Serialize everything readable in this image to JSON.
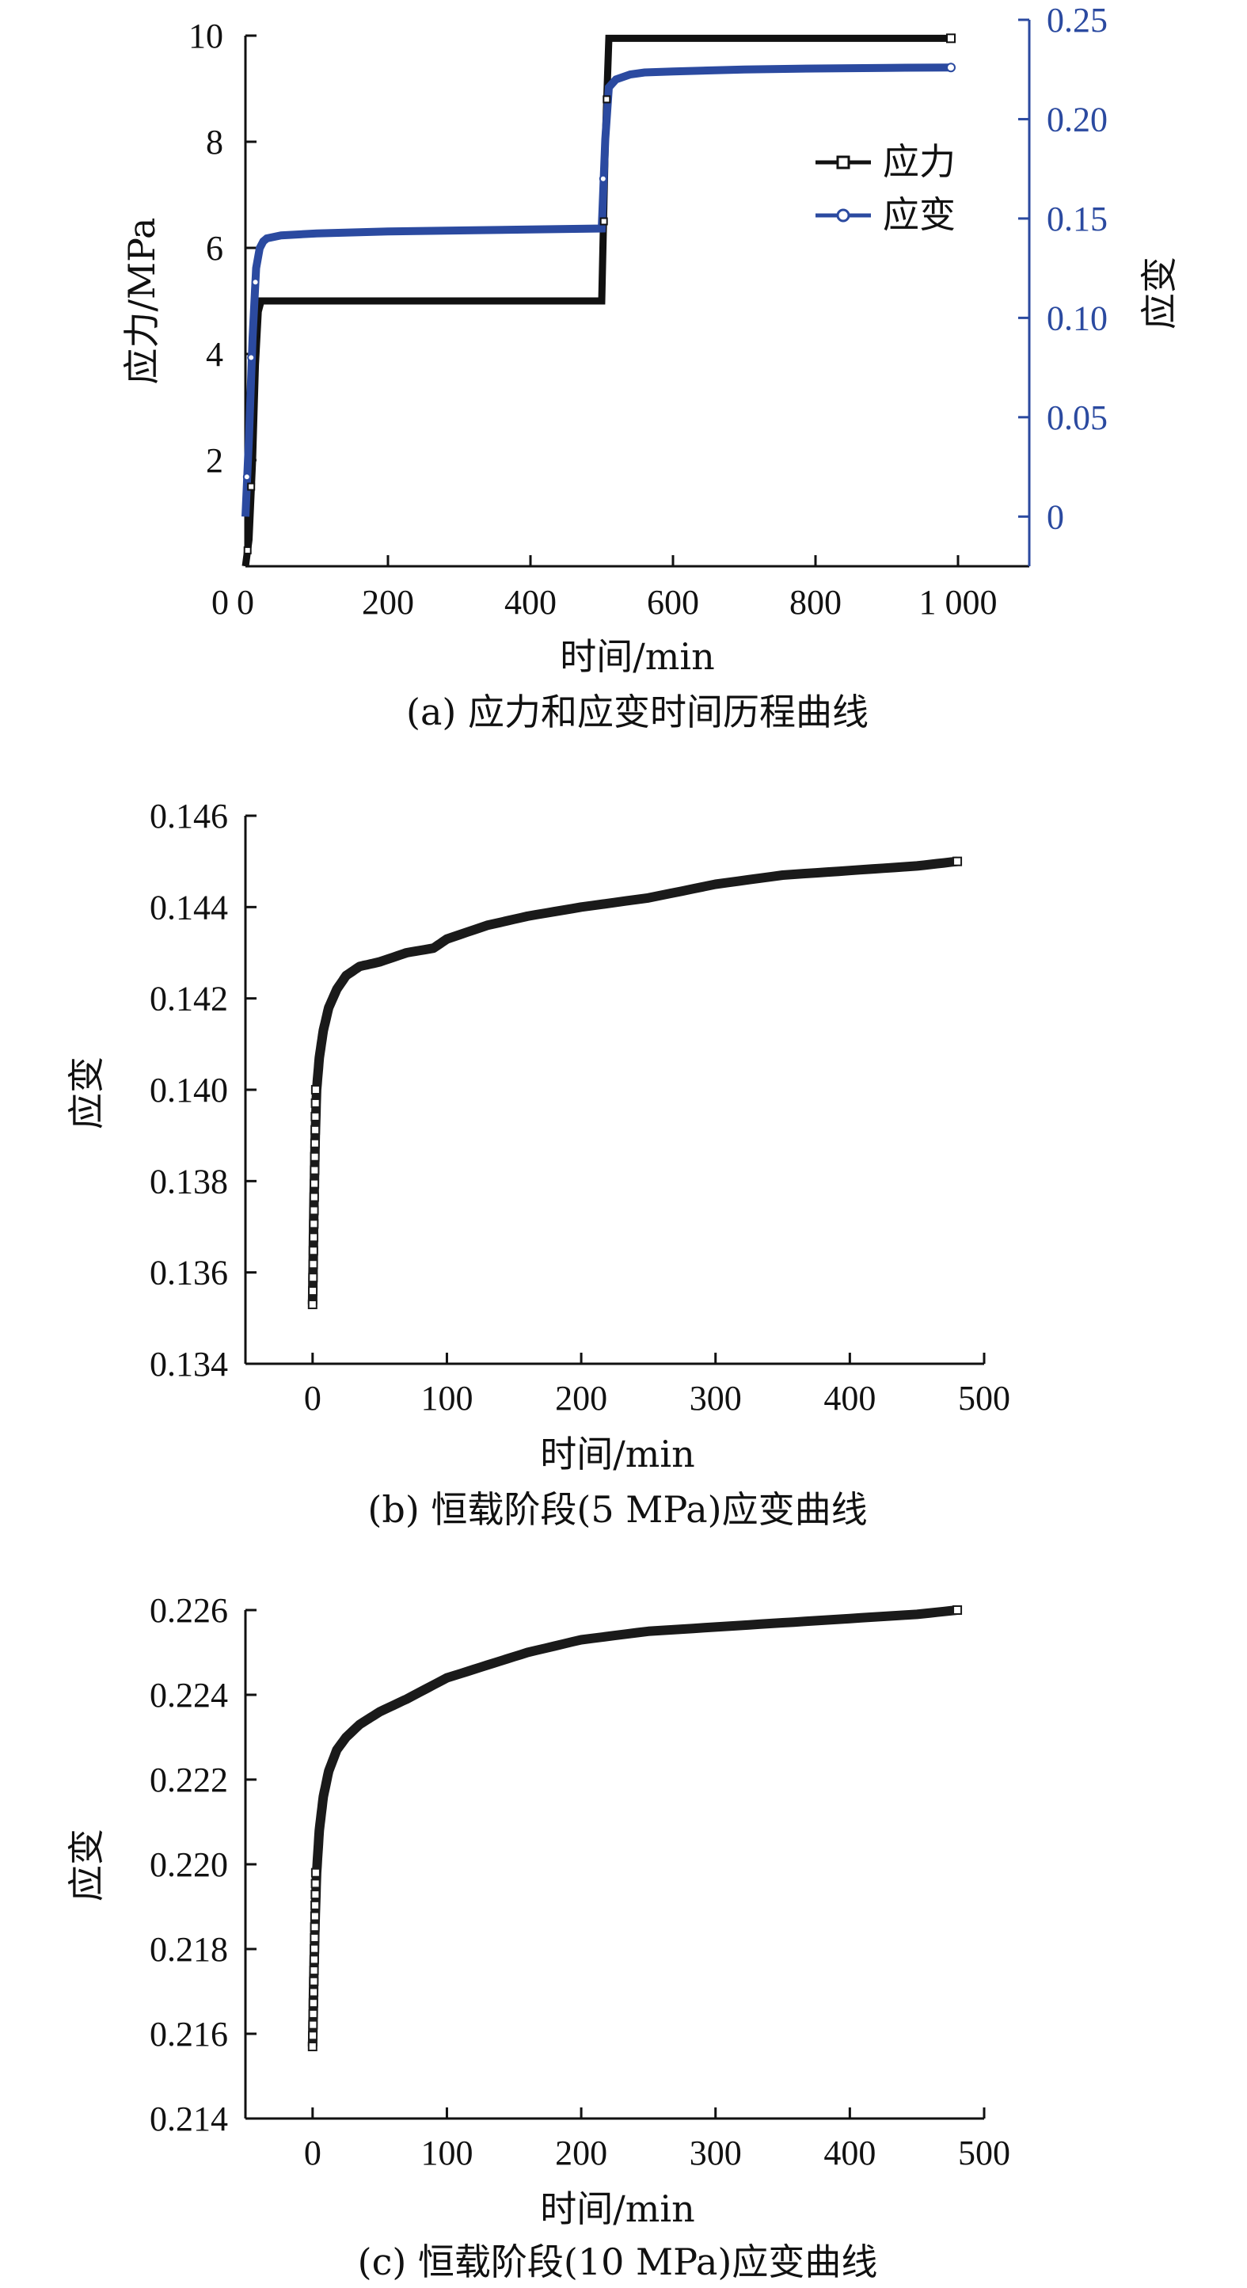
{
  "chart_data": [
    {
      "id": "a",
      "type": "line",
      "caption": "(a) 应力和应变时间历程曲线",
      "xlabel": "时间/min",
      "ylabel": "应力/MPa",
      "y2label": "应变",
      "xlim": [
        0,
        1100
      ],
      "ylim": [
        0,
        10
      ],
      "y2lim": [
        -0.025,
        0.25
      ],
      "x_ticks": [
        0,
        200,
        400,
        600,
        800,
        1000
      ],
      "x_tick_labels": [
        "0",
        "200",
        "400",
        "600",
        "800",
        "1 000"
      ],
      "y_ticks": [
        2,
        4,
        6,
        8,
        10
      ],
      "y_tick_labels": [
        "2",
        "4",
        "6",
        "8",
        "10"
      ],
      "y2_ticks": [
        0,
        0.05,
        0.1,
        0.15,
        0.2,
        0.25
      ],
      "y2_tick_labels": [
        "0",
        "0.05",
        "0.10",
        "0.15",
        "0.20",
        "0.25"
      ],
      "legend_position": "top-right",
      "stress_color": "#111111",
      "strain_color": "#2b4aa0",
      "series": [
        {
          "name": "应力",
          "axis": "left",
          "x": [
            0,
            5,
            10,
            14,
            18,
            22,
            500,
            505,
            510,
            520,
            700,
            990
          ],
          "y": [
            0,
            0.5,
            2.0,
            3.8,
            4.8,
            5.0,
            5.0,
            8.0,
            9.95,
            9.95,
            9.95,
            9.95
          ]
        },
        {
          "name": "应变",
          "axis": "right",
          "x": [
            0,
            5,
            10,
            15,
            20,
            25,
            30,
            50,
            100,
            200,
            300,
            400,
            500,
            505,
            510,
            520,
            540,
            560,
            600,
            700,
            800,
            900,
            990
          ],
          "y": [
            0,
            0.04,
            0.09,
            0.125,
            0.135,
            0.1385,
            0.14,
            0.1415,
            0.1425,
            0.1435,
            0.144,
            0.1445,
            0.145,
            0.19,
            0.216,
            0.22,
            0.2225,
            0.2235,
            0.224,
            0.225,
            0.2255,
            0.2258,
            0.226
          ]
        }
      ]
    },
    {
      "id": "b",
      "type": "line",
      "caption": "(b) 恒载阶段(5 MPa)应变曲线",
      "xlabel": "时间/min",
      "ylabel": "应变",
      "xlim": [
        -50,
        500
      ],
      "ylim": [
        0.134,
        0.146
      ],
      "x_ticks": [
        0,
        100,
        200,
        300,
        400,
        500
      ],
      "x_tick_labels": [
        "0",
        "100",
        "200",
        "300",
        "400",
        "500"
      ],
      "y_ticks": [
        0.134,
        0.136,
        0.138,
        0.14,
        0.142,
        0.144,
        0.146
      ],
      "y_tick_labels": [
        "0.134",
        "0.136",
        "0.138",
        "0.140",
        "0.142",
        "0.144",
        "0.146"
      ],
      "series": [
        {
          "x": [
            0,
            1,
            2,
            3,
            5,
            8,
            12,
            18,
            25,
            35,
            50,
            70,
            90,
            100,
            130,
            160,
            200,
            250,
            300,
            350,
            400,
            450,
            480
          ],
          "y": [
            0.1353,
            0.1375,
            0.139,
            0.14,
            0.1407,
            0.1413,
            0.1418,
            0.1422,
            0.1425,
            0.1427,
            0.1428,
            0.143,
            0.1431,
            0.1433,
            0.1436,
            0.1438,
            0.144,
            0.1442,
            0.1445,
            0.1447,
            0.1448,
            0.1449,
            0.145
          ]
        }
      ]
    },
    {
      "id": "c",
      "type": "line",
      "caption": "(c) 恒载阶段(10 MPa)应变曲线",
      "xlabel": "时间/min",
      "ylabel": "应变",
      "xlim": [
        -50,
        500
      ],
      "ylim": [
        0.214,
        0.226
      ],
      "x_ticks": [
        0,
        100,
        200,
        300,
        400,
        500
      ],
      "x_tick_labels": [
        "0",
        "100",
        "200",
        "300",
        "400",
        "500"
      ],
      "y_ticks": [
        0.214,
        0.216,
        0.218,
        0.22,
        0.222,
        0.224,
        0.226
      ],
      "y_tick_labels": [
        "0.214",
        "0.216",
        "0.218",
        "0.220",
        "0.222",
        "0.224",
        "0.226"
      ],
      "series": [
        {
          "x": [
            0,
            1,
            2,
            3,
            5,
            8,
            12,
            18,
            25,
            35,
            50,
            70,
            100,
            130,
            160,
            200,
            250,
            300,
            350,
            400,
            450,
            480
          ],
          "y": [
            0.2157,
            0.2175,
            0.2188,
            0.2198,
            0.2208,
            0.2216,
            0.2222,
            0.2227,
            0.223,
            0.2233,
            0.2236,
            0.2239,
            0.2244,
            0.2247,
            0.225,
            0.2253,
            0.2255,
            0.2256,
            0.2257,
            0.2258,
            0.2259,
            0.226
          ]
        }
      ]
    }
  ]
}
